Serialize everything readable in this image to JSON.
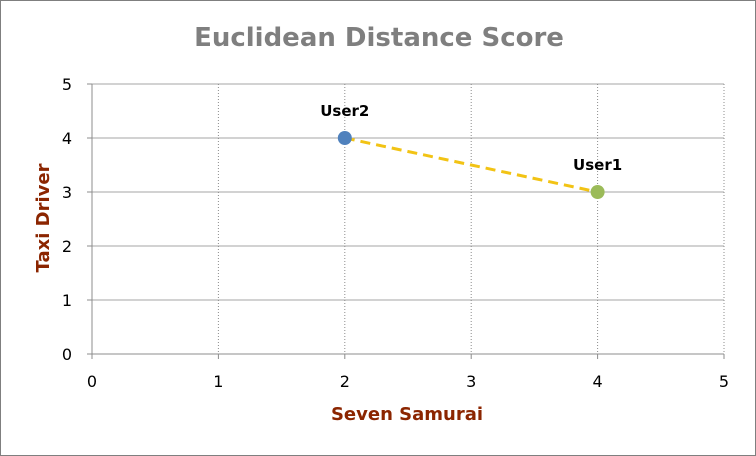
{
  "chart_data": {
    "type": "scatter",
    "title": "Euclidean Distance Score",
    "xlabel": "Seven Samurai",
    "ylabel": "Taxi Driver",
    "xlim": [
      0,
      5
    ],
    "ylim": [
      0,
      5
    ],
    "xticks": [
      "0",
      "1",
      "2",
      "3",
      "4",
      "5"
    ],
    "yticks": [
      "0",
      "1",
      "2",
      "3",
      "4",
      "5"
    ],
    "grid": {
      "horizontal": "solid",
      "vertical": "dotted"
    },
    "points": [
      {
        "label": "User2",
        "x": 2,
        "y": 4,
        "color": "#4f81bd"
      },
      {
        "label": "User1",
        "x": 4,
        "y": 3,
        "color": "#9bbb59"
      }
    ],
    "connector": {
      "from": "User2",
      "to": "User1",
      "style": "dashed",
      "color": "#f2c314"
    },
    "colors": {
      "title": "#7f7f7f",
      "axis_title": "#8b2500",
      "grid": "#a6a6a6"
    }
  }
}
